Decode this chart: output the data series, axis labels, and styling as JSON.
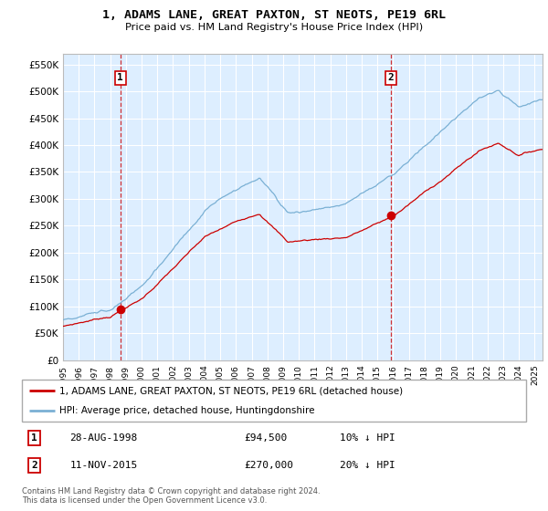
{
  "title": "1, ADAMS LANE, GREAT PAXTON, ST NEOTS, PE19 6RL",
  "subtitle": "Price paid vs. HM Land Registry's House Price Index (HPI)",
  "ylabel_ticks": [
    "£0",
    "£50K",
    "£100K",
    "£150K",
    "£200K",
    "£250K",
    "£300K",
    "£350K",
    "£400K",
    "£450K",
    "£500K",
    "£550K"
  ],
  "ytick_vals": [
    0,
    50000,
    100000,
    150000,
    200000,
    250000,
    300000,
    350000,
    400000,
    450000,
    500000,
    550000
  ],
  "ylim": [
    0,
    570000
  ],
  "sale1_date_x": 1998.65,
  "sale1_price": 94500,
  "sale2_date_x": 2015.85,
  "sale2_price": 270000,
  "sale1_label": "28-AUG-1998",
  "sale1_amount": "£94,500",
  "sale1_hpi": "10% ↓ HPI",
  "sale2_label": "11-NOV-2015",
  "sale2_amount": "£270,000",
  "sale2_hpi": "20% ↓ HPI",
  "legend_line1": "1, ADAMS LANE, GREAT PAXTON, ST NEOTS, PE19 6RL (detached house)",
  "legend_line2": "HPI: Average price, detached house, Huntingdonshire",
  "footnote": "Contains HM Land Registry data © Crown copyright and database right 2024.\nThis data is licensed under the Open Government Licence v3.0.",
  "line_color_red": "#cc0000",
  "line_color_blue": "#7ab0d4",
  "bg_color": "#ddeeff",
  "grid_color": "#ffffff",
  "xlim_start": 1995.0,
  "xlim_end": 2025.5
}
